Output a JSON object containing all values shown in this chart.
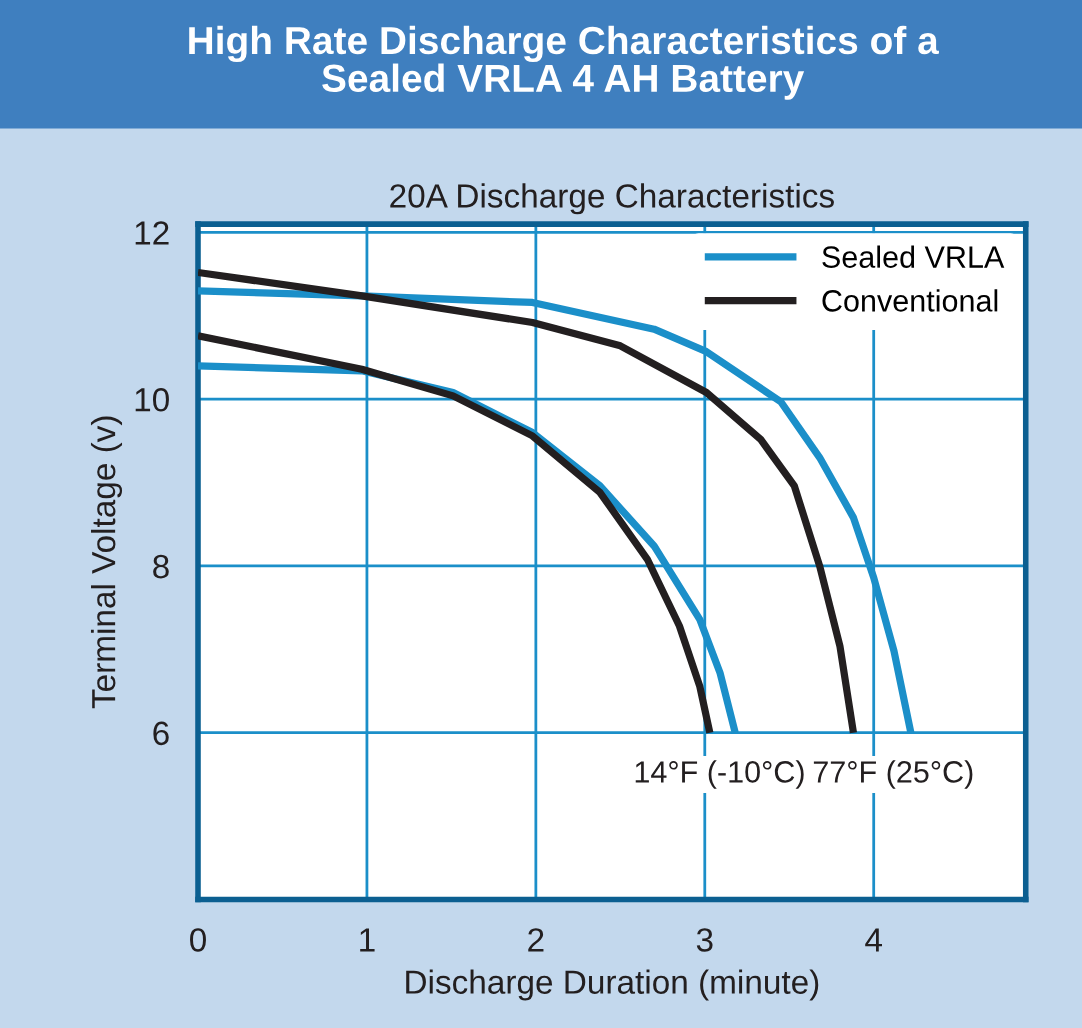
{
  "chart_data": {
    "type": "line",
    "title": "High Rate Discharge Characteristics of a\nSealed VRLA 4 AH Battery",
    "subtitle": "20A Discharge Characteristics",
    "xlabel": "Discharge Duration (minute)",
    "ylabel": "Terminal Voltage (v)",
    "series": [
      {
        "name": "Sealed VRLA",
        "color": "#1b8fc9",
        "x": [
          0,
          0.97,
          1.98,
          2.7,
          3.01,
          3.45,
          3.68,
          3.88,
          4.0,
          4.12,
          4.22
        ],
        "values": [
          11.3,
          11.24,
          11.16,
          10.84,
          10.57,
          9.97,
          9.3,
          8.58,
          7.86,
          6.98,
          6.0
        ]
      },
      {
        "name": "Conventional",
        "color": "#231f20",
        "x": [
          0,
          0.97,
          1.98,
          2.5,
          3.01,
          3.33,
          3.53,
          3.68,
          3.8,
          3.88
        ],
        "values": [
          11.52,
          11.24,
          10.92,
          10.64,
          10.08,
          9.52,
          8.96,
          8.0,
          7.04,
          6.0
        ]
      },
      {
        "color": "#1b8fc9",
        "x": [
          0,
          0.97,
          1.51,
          1.98,
          2.38,
          2.7,
          2.97,
          3.09,
          3.18
        ],
        "values": [
          10.4,
          10.34,
          10.08,
          9.6,
          8.96,
          8.24,
          7.36,
          6.72,
          6.0
        ]
      },
      {
        "color": "#231f20",
        "x": [
          0,
          0.97,
          1.51,
          1.98,
          2.38,
          2.66,
          2.85,
          2.97,
          3.03
        ],
        "values": [
          10.76,
          10.36,
          10.04,
          9.56,
          8.88,
          8.08,
          7.28,
          6.56,
          6.0
        ]
      }
    ],
    "annotations": [
      "14°F (-10°C)",
      "77°F (25°C)"
    ],
    "xlim": [
      0,
      4.9
    ],
    "ylim": [
      4,
      12.1
    ],
    "xticks": [
      0,
      1,
      2,
      3,
      4
    ],
    "yticks": [
      6,
      8,
      10,
      12
    ],
    "grid": true,
    "legend": "top right",
    "marker": "none",
    "line_style": "solid"
  }
}
